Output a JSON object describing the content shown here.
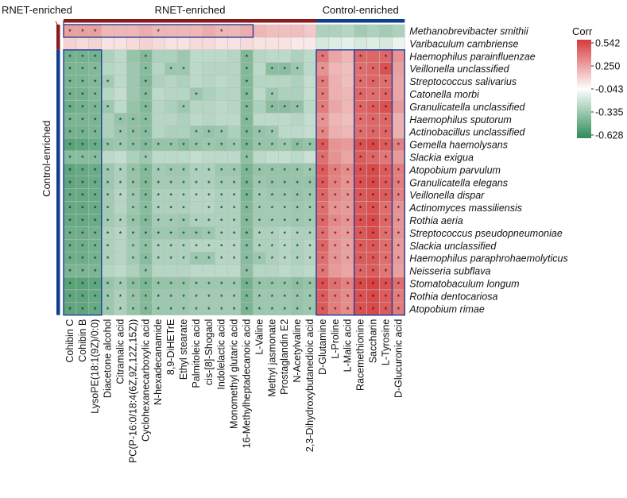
{
  "chart_data": {
    "type": "heatmap",
    "title": "",
    "top_groups": [
      {
        "label": "RNET-enriched",
        "color": "#8b1a1a",
        "start": 0,
        "end": 20
      },
      {
        "label": "Control-enriched",
        "color": "#0f3f8c",
        "start": 20,
        "end": 27
      }
    ],
    "left_groups": [
      {
        "label": "RNET-enriched",
        "color": "#8b1a1a",
        "start": 0,
        "end": 2
      },
      {
        "label": "Control-enriched",
        "color": "#0f3f8c",
        "start": 2,
        "end": 23
      }
    ],
    "columns": [
      "Cohibin C",
      "Cohibin B",
      "LysoPE(18:1(9Z)/0:0)",
      "Diacetone alcohol",
      "Citramalic acid",
      "PC(P-16:0/18:4(6Z,9Z,12Z,15Z))",
      "Cyclohexanecarboxylic acid",
      "N-hexadecanamide",
      "8,9-DiHETrE",
      "Ethyl stearate",
      "Palmitoleic acid",
      "cis-[8]-Shogaol",
      "Indolelactic acid",
      "Monomethyl glutaric acid",
      "16-Methylheptadecanoic acid",
      "L-Valine",
      "Methyl jasmonate",
      "Prostaglandin E2",
      "N-Acetylvaline",
      "2,3-Dihydroxybutanedioic acid",
      "D-Glutamine",
      "L-Proline",
      "L-Malic acid",
      "Racemethionine",
      "Saccharin",
      "L-Tyrosine",
      "D-Glucuronic acid"
    ],
    "rows": [
      "Methanobrevibacter smithii",
      "Varibaculum cambriense",
      "Haemophilus parainfluenzae",
      "Veillonella unclassified",
      "Streptococcus salivarius",
      "Catonella morbi",
      "Granulicatella unclassified",
      "Haemophilus sputorum",
      "Actinobacillus unclassified",
      "Gemella haemolysans",
      "Slackia exigua",
      "Atopobium parvulum",
      "Granulicatella elegans",
      "Veillonella dispar",
      "Actinomyces massiliensis",
      "Rothia aeria",
      "Streptococcus pseudopneumoniae",
      "Slackia unclassified",
      "Haemophilus paraphrohaemolyticus",
      "Neisseria subflava",
      "Stomatobaculum longum",
      "Rothia dentocariosa",
      "Atopobium rimae"
    ],
    "values": [
      [
        0.26,
        0.26,
        0.26,
        0.2,
        0.2,
        0.2,
        0.23,
        0.2,
        0.2,
        0.2,
        0.2,
        0.23,
        0.2,
        0.2,
        0.23,
        0.2,
        0.18,
        0.18,
        0.18,
        0.15,
        -0.25,
        -0.25,
        -0.22,
        -0.28,
        -0.25,
        -0.28,
        -0.25
      ],
      [
        0.12,
        0.1,
        0.12,
        0.08,
        0.08,
        0.1,
        0.12,
        0.1,
        0.08,
        0.08,
        0.1,
        0.1,
        0.08,
        0.08,
        0.1,
        0.08,
        0.08,
        0.08,
        0.06,
        0.06,
        -0.12,
        -0.1,
        -0.08,
        -0.12,
        -0.1,
        -0.12,
        -0.06
      ],
      [
        -0.42,
        -0.42,
        -0.42,
        -0.25,
        -0.2,
        -0.32,
        -0.38,
        -0.25,
        -0.25,
        -0.3,
        -0.2,
        -0.2,
        -0.2,
        -0.22,
        -0.38,
        -0.22,
        -0.2,
        -0.2,
        -0.25,
        -0.2,
        0.38,
        0.25,
        0.2,
        0.42,
        0.42,
        0.42,
        0.3
      ],
      [
        -0.4,
        -0.4,
        -0.38,
        -0.22,
        -0.2,
        -0.3,
        -0.36,
        -0.22,
        -0.3,
        -0.3,
        -0.2,
        -0.22,
        -0.22,
        -0.22,
        -0.38,
        -0.2,
        -0.35,
        -0.35,
        -0.3,
        -0.2,
        0.3,
        0.2,
        0.18,
        0.4,
        0.42,
        0.48,
        0.26
      ],
      [
        -0.4,
        -0.4,
        -0.38,
        -0.28,
        -0.2,
        -0.3,
        -0.38,
        -0.25,
        -0.22,
        -0.25,
        -0.2,
        -0.22,
        -0.2,
        -0.22,
        -0.38,
        -0.22,
        -0.22,
        -0.22,
        -0.25,
        -0.18,
        0.36,
        0.22,
        0.18,
        0.4,
        0.42,
        0.4,
        0.25
      ],
      [
        -0.42,
        -0.42,
        -0.38,
        -0.22,
        -0.18,
        -0.3,
        -0.36,
        -0.2,
        -0.22,
        -0.22,
        -0.3,
        -0.25,
        -0.22,
        -0.22,
        -0.38,
        -0.2,
        -0.3,
        -0.25,
        -0.25,
        -0.18,
        0.36,
        0.22,
        0.2,
        0.42,
        0.4,
        0.42,
        0.25
      ],
      [
        -0.44,
        -0.42,
        -0.4,
        -0.3,
        -0.2,
        -0.32,
        -0.38,
        -0.22,
        -0.25,
        -0.3,
        -0.22,
        -0.22,
        -0.2,
        -0.22,
        -0.38,
        -0.25,
        -0.35,
        -0.35,
        -0.33,
        -0.2,
        0.36,
        0.25,
        0.2,
        0.42,
        0.45,
        0.48,
        0.28
      ],
      [
        -0.4,
        -0.4,
        -0.4,
        -0.25,
        -0.32,
        -0.34,
        -0.36,
        -0.22,
        -0.22,
        -0.25,
        -0.2,
        -0.22,
        -0.2,
        -0.2,
        -0.38,
        -0.2,
        -0.2,
        -0.2,
        -0.22,
        -0.18,
        0.3,
        0.2,
        0.18,
        0.4,
        0.42,
        0.42,
        0.22
      ],
      [
        -0.42,
        -0.42,
        -0.4,
        -0.25,
        -0.3,
        -0.34,
        -0.36,
        -0.22,
        -0.25,
        -0.25,
        -0.3,
        -0.32,
        -0.3,
        -0.25,
        -0.38,
        -0.32,
        -0.3,
        -0.2,
        -0.2,
        -0.18,
        0.33,
        0.22,
        0.2,
        0.4,
        0.42,
        0.42,
        0.22
      ],
      [
        -0.5,
        -0.48,
        -0.45,
        -0.32,
        -0.3,
        -0.34,
        -0.38,
        -0.32,
        -0.32,
        -0.35,
        -0.32,
        -0.3,
        -0.32,
        -0.3,
        -0.4,
        -0.32,
        -0.32,
        -0.3,
        -0.35,
        -0.32,
        0.45,
        0.3,
        0.28,
        0.48,
        0.5,
        0.45,
        0.35
      ],
      [
        -0.36,
        -0.36,
        -0.36,
        -0.2,
        -0.18,
        -0.25,
        -0.3,
        -0.2,
        -0.2,
        -0.2,
        -0.18,
        -0.2,
        -0.2,
        -0.2,
        -0.34,
        -0.2,
        -0.18,
        -0.18,
        -0.2,
        -0.16,
        0.4,
        0.3,
        0.25,
        0.45,
        0.42,
        0.38,
        0.28
      ],
      [
        -0.48,
        -0.46,
        -0.45,
        -0.3,
        -0.25,
        -0.32,
        -0.38,
        -0.28,
        -0.3,
        -0.3,
        -0.25,
        -0.25,
        -0.3,
        -0.3,
        -0.4,
        -0.32,
        -0.32,
        -0.32,
        -0.32,
        -0.3,
        0.45,
        0.36,
        0.32,
        0.48,
        0.5,
        0.45,
        0.36
      ],
      [
        -0.48,
        -0.46,
        -0.45,
        -0.3,
        -0.25,
        -0.32,
        -0.38,
        -0.28,
        -0.28,
        -0.28,
        -0.25,
        -0.25,
        -0.28,
        -0.28,
        -0.4,
        -0.3,
        -0.32,
        -0.32,
        -0.32,
        -0.32,
        0.45,
        0.35,
        0.3,
        0.48,
        0.5,
        0.45,
        0.36
      ],
      [
        -0.46,
        -0.46,
        -0.45,
        -0.28,
        -0.22,
        -0.3,
        -0.38,
        -0.25,
        -0.25,
        -0.25,
        -0.22,
        -0.22,
        -0.25,
        -0.25,
        -0.4,
        -0.28,
        -0.3,
        -0.3,
        -0.32,
        -0.3,
        0.42,
        0.33,
        0.3,
        0.46,
        0.48,
        0.45,
        0.34
      ],
      [
        -0.46,
        -0.46,
        -0.45,
        -0.28,
        -0.22,
        -0.3,
        -0.36,
        -0.25,
        -0.25,
        -0.25,
        -0.22,
        -0.22,
        -0.25,
        -0.25,
        -0.38,
        -0.28,
        -0.28,
        -0.28,
        -0.3,
        -0.28,
        0.4,
        0.3,
        0.28,
        0.45,
        0.48,
        0.4,
        0.3
      ],
      [
        -0.46,
        -0.46,
        -0.45,
        -0.28,
        -0.25,
        -0.32,
        -0.38,
        -0.28,
        -0.28,
        -0.3,
        -0.25,
        -0.25,
        -0.25,
        -0.25,
        -0.38,
        -0.28,
        -0.28,
        -0.28,
        -0.3,
        -0.28,
        0.42,
        0.33,
        0.3,
        0.48,
        0.5,
        0.42,
        0.3
      ],
      [
        -0.44,
        -0.44,
        -0.42,
        -0.25,
        -0.22,
        -0.3,
        -0.36,
        -0.3,
        -0.3,
        -0.32,
        -0.32,
        -0.3,
        -0.25,
        -0.25,
        -0.38,
        -0.25,
        -0.25,
        -0.22,
        -0.25,
        -0.25,
        0.4,
        0.3,
        0.28,
        0.46,
        0.5,
        0.4,
        0.3
      ],
      [
        -0.44,
        -0.44,
        -0.42,
        -0.25,
        -0.22,
        -0.28,
        -0.34,
        -0.25,
        -0.25,
        -0.25,
        -0.22,
        -0.22,
        -0.22,
        -0.22,
        -0.36,
        -0.25,
        -0.25,
        -0.22,
        -0.25,
        -0.22,
        0.42,
        0.3,
        0.26,
        0.45,
        0.46,
        0.4,
        0.28
      ],
      [
        -0.44,
        -0.44,
        -0.42,
        -0.25,
        -0.22,
        -0.28,
        -0.36,
        -0.25,
        -0.25,
        -0.25,
        -0.3,
        -0.3,
        -0.22,
        -0.22,
        -0.36,
        -0.3,
        -0.25,
        -0.22,
        -0.25,
        -0.22,
        0.4,
        0.3,
        0.26,
        0.45,
        0.46,
        0.4,
        0.28
      ],
      [
        -0.4,
        -0.4,
        -0.4,
        -0.22,
        -0.2,
        -0.25,
        -0.32,
        -0.22,
        -0.22,
        -0.22,
        -0.2,
        -0.2,
        -0.2,
        -0.2,
        -0.34,
        -0.22,
        -0.22,
        -0.2,
        -0.22,
        -0.2,
        0.38,
        0.28,
        0.25,
        0.42,
        0.45,
        0.38,
        0.26
      ],
      [
        -0.5,
        -0.5,
        -0.48,
        -0.32,
        -0.28,
        -0.35,
        -0.4,
        -0.32,
        -0.32,
        -0.32,
        -0.3,
        -0.3,
        -0.3,
        -0.3,
        -0.42,
        -0.32,
        -0.32,
        -0.32,
        -0.35,
        -0.32,
        0.48,
        0.4,
        0.35,
        0.5,
        0.52,
        0.48,
        0.4
      ],
      [
        -0.48,
        -0.48,
        -0.46,
        -0.3,
        -0.25,
        -0.32,
        -0.38,
        -0.3,
        -0.3,
        -0.3,
        -0.28,
        -0.28,
        -0.28,
        -0.28,
        -0.4,
        -0.3,
        -0.3,
        -0.3,
        -0.32,
        -0.3,
        0.45,
        0.36,
        0.32,
        0.48,
        0.5,
        0.45,
        0.36
      ],
      [
        -0.48,
        -0.48,
        -0.46,
        -0.3,
        -0.25,
        -0.32,
        -0.38,
        -0.3,
        -0.3,
        -0.3,
        -0.28,
        -0.28,
        -0.28,
        -0.28,
        -0.4,
        -0.3,
        -0.3,
        -0.3,
        -0.32,
        -0.3,
        0.45,
        0.36,
        0.32,
        0.48,
        0.5,
        0.45,
        0.36
      ]
    ],
    "significant": [
      [
        1,
        1,
        1,
        0,
        0,
        0,
        0,
        1,
        0,
        0,
        0,
        0,
        1,
        0,
        0,
        0,
        0,
        0,
        0,
        0,
        0,
        0,
        0,
        0,
        0,
        0,
        0
      ],
      [
        0,
        0,
        0,
        0,
        0,
        0,
        0,
        0,
        0,
        0,
        0,
        0,
        0,
        0,
        0,
        0,
        0,
        0,
        0,
        0,
        0,
        0,
        0,
        0,
        0,
        0,
        0
      ],
      [
        1,
        1,
        1,
        0,
        0,
        0,
        1,
        0,
        0,
        0,
        0,
        0,
        0,
        0,
        1,
        0,
        0,
        0,
        0,
        0,
        1,
        0,
        0,
        1,
        0,
        1,
        0
      ],
      [
        1,
        1,
        1,
        0,
        0,
        0,
        1,
        0,
        1,
        1,
        0,
        0,
        0,
        0,
        1,
        0,
        1,
        1,
        1,
        0,
        1,
        0,
        0,
        1,
        1,
        1,
        0
      ],
      [
        1,
        1,
        1,
        1,
        0,
        0,
        1,
        0,
        0,
        0,
        0,
        0,
        0,
        0,
        1,
        0,
        0,
        0,
        0,
        0,
        1,
        0,
        0,
        1,
        1,
        1,
        0
      ],
      [
        1,
        1,
        1,
        0,
        0,
        0,
        1,
        0,
        0,
        0,
        1,
        0,
        0,
        0,
        1,
        0,
        1,
        0,
        0,
        0,
        1,
        0,
        0,
        1,
        1,
        1,
        0
      ],
      [
        1,
        1,
        1,
        1,
        0,
        0,
        1,
        0,
        0,
        1,
        0,
        0,
        0,
        0,
        1,
        0,
        1,
        1,
        1,
        0,
        1,
        0,
        0,
        1,
        1,
        1,
        0
      ],
      [
        1,
        1,
        1,
        0,
        1,
        1,
        1,
        0,
        0,
        0,
        0,
        0,
        0,
        0,
        1,
        0,
        0,
        0,
        0,
        0,
        1,
        0,
        0,
        1,
        1,
        1,
        0
      ],
      [
        1,
        1,
        1,
        0,
        1,
        1,
        1,
        0,
        0,
        0,
        1,
        1,
        1,
        0,
        1,
        1,
        1,
        0,
        0,
        0,
        1,
        0,
        0,
        1,
        1,
        1,
        0
      ],
      [
        1,
        1,
        1,
        1,
        1,
        1,
        1,
        1,
        1,
        1,
        1,
        1,
        1,
        1,
        1,
        1,
        1,
        1,
        1,
        1,
        1,
        0,
        0,
        1,
        1,
        1,
        1
      ],
      [
        1,
        1,
        1,
        0,
        0,
        0,
        1,
        0,
        0,
        0,
        0,
        0,
        0,
        0,
        1,
        0,
        0,
        0,
        0,
        0,
        1,
        0,
        0,
        1,
        1,
        1,
        0
      ],
      [
        1,
        1,
        1,
        1,
        1,
        1,
        1,
        1,
        1,
        1,
        1,
        1,
        1,
        1,
        1,
        1,
        1,
        1,
        1,
        1,
        1,
        1,
        1,
        1,
        1,
        1,
        1
      ],
      [
        1,
        1,
        1,
        1,
        1,
        1,
        1,
        1,
        1,
        1,
        1,
        1,
        1,
        1,
        1,
        1,
        1,
        1,
        1,
        1,
        1,
        1,
        1,
        1,
        1,
        1,
        1
      ],
      [
        1,
        1,
        1,
        1,
        1,
        1,
        1,
        1,
        1,
        1,
        1,
        1,
        1,
        1,
        1,
        1,
        1,
        1,
        1,
        1,
        1,
        1,
        1,
        1,
        1,
        1,
        1
      ],
      [
        1,
        1,
        1,
        1,
        0,
        1,
        1,
        1,
        1,
        1,
        0,
        1,
        1,
        1,
        1,
        1,
        1,
        1,
        1,
        1,
        1,
        1,
        1,
        1,
        1,
        1,
        1
      ],
      [
        1,
        1,
        1,
        1,
        1,
        1,
        1,
        1,
        1,
        1,
        1,
        1,
        1,
        1,
        1,
        1,
        1,
        1,
        1,
        1,
        1,
        1,
        1,
        1,
        1,
        1,
        1
      ],
      [
        1,
        1,
        1,
        1,
        1,
        1,
        1,
        1,
        1,
        1,
        1,
        1,
        1,
        1,
        1,
        1,
        1,
        1,
        1,
        1,
        1,
        1,
        1,
        1,
        1,
        1,
        1
      ],
      [
        1,
        1,
        1,
        1,
        0,
        1,
        1,
        1,
        1,
        1,
        1,
        1,
        1,
        1,
        1,
        1,
        1,
        1,
        1,
        1,
        1,
        1,
        1,
        1,
        1,
        1,
        1
      ],
      [
        1,
        1,
        1,
        1,
        0,
        1,
        1,
        1,
        1,
        1,
        1,
        1,
        1,
        1,
        1,
        1,
        1,
        1,
        1,
        1,
        1,
        1,
        1,
        1,
        1,
        1,
        1
      ],
      [
        1,
        1,
        1,
        0,
        0,
        0,
        1,
        0,
        0,
        0,
        0,
        0,
        0,
        0,
        1,
        0,
        0,
        0,
        0,
        0,
        1,
        0,
        0,
        1,
        1,
        1,
        0
      ],
      [
        1,
        1,
        1,
        1,
        1,
        1,
        1,
        1,
        1,
        1,
        1,
        1,
        1,
        1,
        1,
        1,
        1,
        1,
        1,
        1,
        1,
        1,
        1,
        1,
        1,
        1,
        1
      ],
      [
        1,
        1,
        1,
        1,
        1,
        1,
        1,
        1,
        1,
        1,
        1,
        1,
        1,
        1,
        1,
        1,
        1,
        1,
        1,
        1,
        1,
        1,
        1,
        1,
        1,
        1,
        1
      ],
      [
        1,
        1,
        1,
        1,
        1,
        1,
        1,
        1,
        1,
        1,
        1,
        1,
        1,
        1,
        1,
        1,
        1,
        1,
        1,
        1,
        1,
        1,
        1,
        1,
        1,
        1,
        1
      ]
    ],
    "colorbar": {
      "title": "Corr",
      "ticks": [
        "0.542",
        "0.250",
        "-0.043",
        "-0.335",
        "-0.628"
      ],
      "range": [
        -0.628,
        0.542
      ],
      "low_color": "#2e8b57",
      "mid_color": "#ffffff",
      "high_color": "#d63a3a"
    },
    "boxes": [
      {
        "rows": [
          0,
          0
        ],
        "cols": [
          0,
          14
        ],
        "color": "#1f3f99"
      },
      {
        "rows": [
          2,
          22
        ],
        "cols": [
          0,
          2
        ],
        "color": "#1f3f99"
      },
      {
        "rows": [
          2,
          22
        ],
        "cols": [
          20,
          26
        ],
        "color": "#1f3f99"
      },
      {
        "rows": [
          2,
          22
        ],
        "cols": [
          23,
          25
        ],
        "color": "#1f3f99"
      }
    ]
  }
}
